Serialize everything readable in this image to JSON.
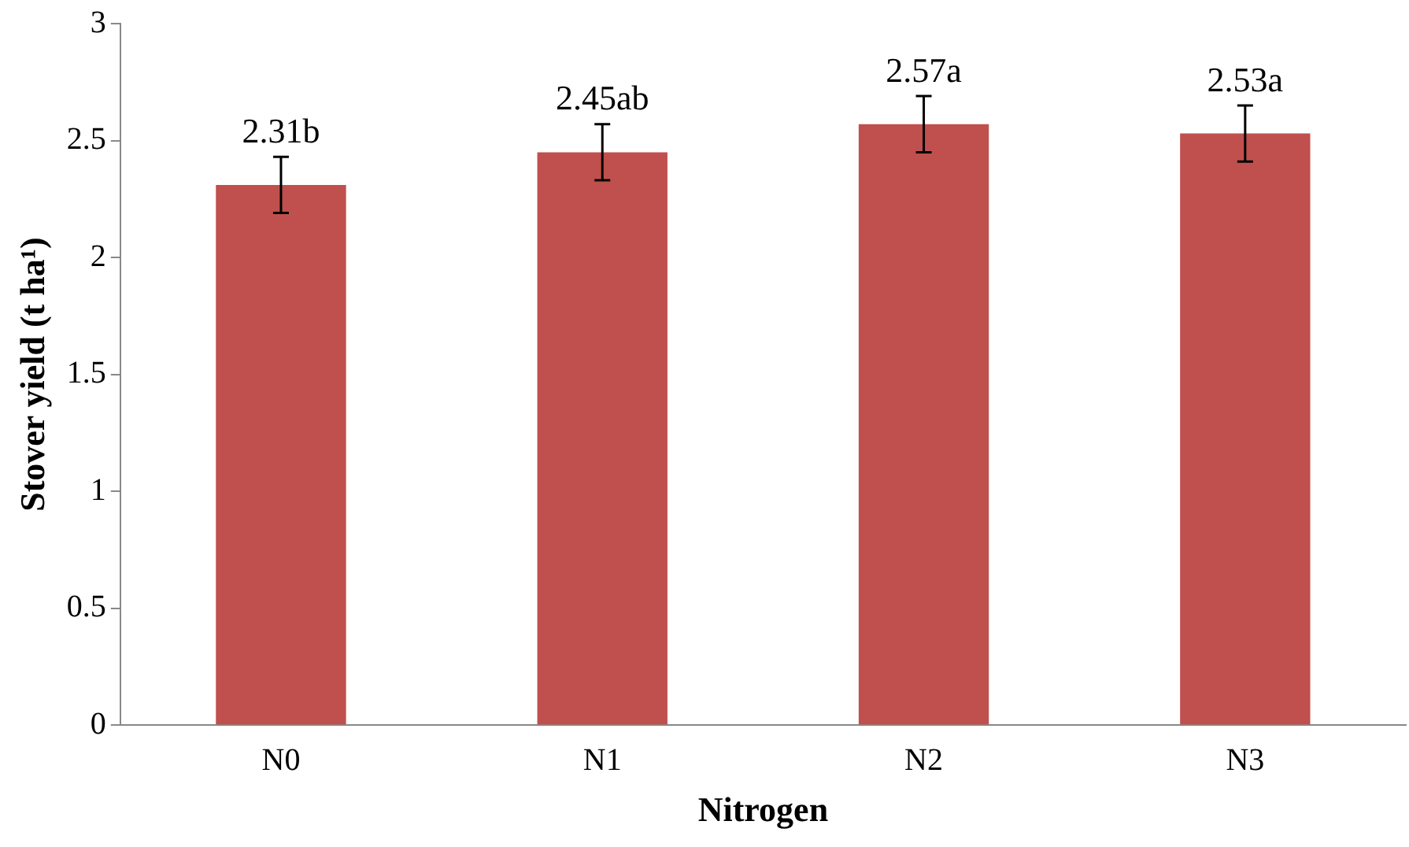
{
  "chart_data": {
    "type": "bar",
    "xlabel": "Nitrogen",
    "ylabel": "Stover yield (t ha¹)",
    "categories": [
      "N0",
      "N1",
      "N2",
      "N3"
    ],
    "values": [
      2.31,
      2.45,
      2.57,
      2.53
    ],
    "errors": [
      0.12,
      0.12,
      0.12,
      0.12
    ],
    "value_labels": [
      "2.31b",
      "2.45ab",
      "2.57a",
      "2.53a"
    ],
    "color": "#c0504d",
    "ylim": [
      0,
      3
    ],
    "yticks": [
      0,
      0.5,
      1,
      1.5,
      2,
      2.5,
      3
    ],
    "grid": false,
    "legend": false
  }
}
